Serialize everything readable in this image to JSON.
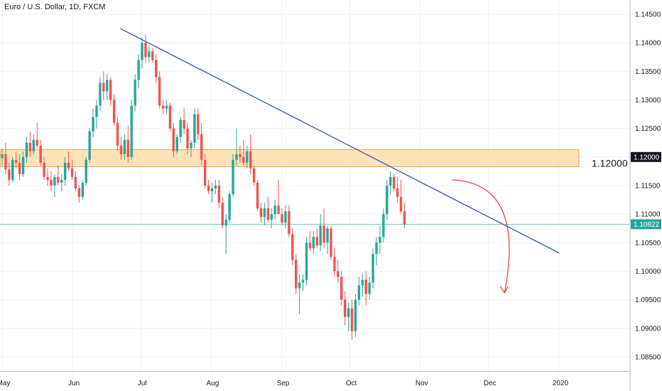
{
  "header": {
    "title": "Euro / U.S. Dollar, 1D, FXCM"
  },
  "colors": {
    "up": "#26a69a",
    "down": "#ef5350",
    "trendline": "#2f5aa8",
    "zone_fill": "#fbd9a6",
    "zone_border": "#f4a347",
    "arrow": "#e53935",
    "price_line": "#26a69a",
    "grid": "#eef0f3",
    "axis": "#b2b5be"
  },
  "chart_data": {
    "type": "candlestick",
    "title": "Euro / U.S. Dollar, 1D, FXCM",
    "ylim": [
      1.0825,
      1.1475
    ],
    "y_ticks": [
      "1.14500",
      "1.14000",
      "1.13500",
      "1.13000",
      "1.12500",
      "1.12000",
      "1.11500",
      "1.11000",
      "1.10500",
      "1.10000",
      "1.09500",
      "1.09000",
      "1.08500"
    ],
    "x_ticks": [
      {
        "label": "May",
        "day": 0
      },
      {
        "label": "Jun",
        "day": 31
      },
      {
        "label": "Jul",
        "day": 61
      },
      {
        "label": "Aug",
        "day": 92
      },
      {
        "label": "Sep",
        "day": 123
      },
      {
        "label": "Oct",
        "day": 153
      },
      {
        "label": "Nov",
        "day": 184
      },
      {
        "label": "Dec",
        "day": 214
      },
      {
        "label": "2020",
        "day": 245
      }
    ],
    "candles": [
      [
        1.1198,
        1.1215,
        1.1185,
        1.1205
      ],
      [
        1.1205,
        1.1225,
        1.117,
        1.1178
      ],
      [
        1.1178,
        1.119,
        1.115,
        1.116
      ],
      [
        1.116,
        1.12,
        1.1155,
        1.1195
      ],
      [
        1.1195,
        1.121,
        1.118,
        1.119
      ],
      [
        1.119,
        1.1205,
        1.116,
        1.117
      ],
      [
        1.117,
        1.121,
        1.1165,
        1.12
      ],
      [
        1.12,
        1.1235,
        1.119,
        1.1225
      ],
      [
        1.1225,
        1.1245,
        1.12,
        1.121
      ],
      [
        1.121,
        1.124,
        1.1205,
        1.123
      ],
      [
        1.123,
        1.126,
        1.1215,
        1.122
      ],
      [
        1.122,
        1.123,
        1.1185,
        1.119
      ],
      [
        1.119,
        1.12,
        1.116,
        1.1165
      ],
      [
        1.1165,
        1.118,
        1.115,
        1.116
      ],
      [
        1.116,
        1.1175,
        1.114,
        1.115
      ],
      [
        1.115,
        1.117,
        1.113,
        1.1165
      ],
      [
        1.1165,
        1.1185,
        1.115,
        1.1155
      ],
      [
        1.1155,
        1.117,
        1.114,
        1.116
      ],
      [
        1.116,
        1.12,
        1.115,
        1.119
      ],
      [
        1.119,
        1.121,
        1.1175,
        1.118
      ],
      [
        1.118,
        1.1195,
        1.116,
        1.1165
      ],
      [
        1.1165,
        1.1175,
        1.114,
        1.1145
      ],
      [
        1.1145,
        1.115,
        1.112,
        1.113
      ],
      [
        1.113,
        1.116,
        1.1125,
        1.1155
      ],
      [
        1.1155,
        1.12,
        1.115,
        1.1195
      ],
      [
        1.1195,
        1.125,
        1.119,
        1.1245
      ],
      [
        1.1245,
        1.1285,
        1.1235,
        1.127
      ],
      [
        1.127,
        1.13,
        1.125,
        1.129
      ],
      [
        1.129,
        1.134,
        1.128,
        1.133
      ],
      [
        1.133,
        1.135,
        1.13,
        1.1315
      ],
      [
        1.1315,
        1.1345,
        1.13,
        1.1335
      ],
      [
        1.1335,
        1.134,
        1.129,
        1.13
      ],
      [
        1.13,
        1.131,
        1.1255,
        1.126
      ],
      [
        1.126,
        1.127,
        1.121,
        1.122
      ],
      [
        1.122,
        1.1235,
        1.1195,
        1.1205
      ],
      [
        1.1205,
        1.124,
        1.1195,
        1.123
      ],
      [
        1.123,
        1.1255,
        1.119,
        1.12
      ],
      [
        1.12,
        1.13,
        1.1195,
        1.129
      ],
      [
        1.129,
        1.1345,
        1.128,
        1.1335
      ],
      [
        1.1335,
        1.138,
        1.132,
        1.137
      ],
      [
        1.137,
        1.141,
        1.1355,
        1.14
      ],
      [
        1.14,
        1.1415,
        1.1365,
        1.1375
      ],
      [
        1.1375,
        1.1395,
        1.1365,
        1.1385
      ],
      [
        1.1385,
        1.139,
        1.1365,
        1.137
      ],
      [
        1.137,
        1.138,
        1.133,
        1.134
      ],
      [
        1.134,
        1.135,
        1.1285,
        1.129
      ],
      [
        1.129,
        1.13,
        1.1275,
        1.1285
      ],
      [
        1.1285,
        1.13,
        1.1275,
        1.129
      ],
      [
        1.129,
        1.1295,
        1.1245,
        1.125
      ],
      [
        1.125,
        1.126,
        1.12,
        1.121
      ],
      [
        1.121,
        1.124,
        1.1205,
        1.1235
      ],
      [
        1.1235,
        1.127,
        1.1225,
        1.1265
      ],
      [
        1.1265,
        1.1285,
        1.124,
        1.125
      ],
      [
        1.125,
        1.126,
        1.1205,
        1.1215
      ],
      [
        1.1215,
        1.123,
        1.12,
        1.1225
      ],
      [
        1.1225,
        1.1285,
        1.1215,
        1.1275
      ],
      [
        1.1275,
        1.1285,
        1.123,
        1.124
      ],
      [
        1.124,
        1.126,
        1.1185,
        1.1195
      ],
      [
        1.1195,
        1.1205,
        1.1145,
        1.115
      ],
      [
        1.115,
        1.116,
        1.1135,
        1.114
      ],
      [
        1.114,
        1.1155,
        1.112,
        1.1145
      ],
      [
        1.1145,
        1.116,
        1.1135,
        1.115
      ],
      [
        1.115,
        1.116,
        1.111,
        1.112
      ],
      [
        1.112,
        1.113,
        1.1075,
        1.108
      ],
      [
        1.108,
        1.11,
        1.103,
        1.109
      ],
      [
        1.109,
        1.114,
        1.1085,
        1.1135
      ],
      [
        1.1135,
        1.1205,
        1.113,
        1.1195
      ],
      [
        1.1195,
        1.125,
        1.1185,
        1.1205
      ],
      [
        1.1205,
        1.122,
        1.119,
        1.12
      ],
      [
        1.12,
        1.123,
        1.1185,
        1.119
      ],
      [
        1.119,
        1.122,
        1.118,
        1.121
      ],
      [
        1.121,
        1.124,
        1.117,
        1.118
      ],
      [
        1.118,
        1.1185,
        1.115,
        1.1155
      ],
      [
        1.1155,
        1.116,
        1.1105,
        1.111
      ],
      [
        1.111,
        1.112,
        1.1085,
        1.1095
      ],
      [
        1.1095,
        1.112,
        1.108,
        1.111
      ],
      [
        1.111,
        1.113,
        1.1085,
        1.109
      ],
      [
        1.109,
        1.111,
        1.1075,
        1.11
      ],
      [
        1.11,
        1.1125,
        1.109,
        1.1115
      ],
      [
        1.1115,
        1.116,
        1.1105,
        1.11
      ],
      [
        1.11,
        1.111,
        1.108,
        1.1085
      ],
      [
        1.1085,
        1.1115,
        1.1075,
        1.1105
      ],
      [
        1.1105,
        1.1115,
        1.106,
        1.1065
      ],
      [
        1.1065,
        1.1075,
        1.101,
        1.102
      ],
      [
        1.102,
        1.103,
        1.096,
        1.097
      ],
      [
        1.097,
        1.0995,
        1.0925,
        1.098
      ],
      [
        1.098,
        1.0995,
        1.0965,
        1.0985
      ],
      [
        1.0985,
        1.106,
        1.0975,
        1.105
      ],
      [
        1.105,
        1.107,
        1.1035,
        1.104
      ],
      [
        1.104,
        1.107,
        1.103,
        1.106
      ],
      [
        1.106,
        1.1075,
        1.104,
        1.1045
      ],
      [
        1.1045,
        1.11,
        1.1035,
        1.108
      ],
      [
        1.108,
        1.111,
        1.104,
        1.105
      ],
      [
        1.105,
        1.108,
        1.103,
        1.1075
      ],
      [
        1.1075,
        1.108,
        1.102,
        1.1025
      ],
      [
        1.1025,
        1.104,
        1.099,
        1.1
      ],
      [
        1.1,
        1.102,
        1.098,
        1.099
      ],
      [
        1.099,
        1.1,
        1.094,
        1.095
      ],
      [
        1.095,
        1.0965,
        1.0905,
        1.092
      ],
      [
        1.092,
        1.0945,
        1.0895,
        1.0935
      ],
      [
        1.0935,
        1.095,
        1.088,
        1.0895
      ],
      [
        1.0895,
        1.096,
        1.0885,
        1.095
      ],
      [
        1.095,
        1.099,
        1.094,
        1.0975
      ],
      [
        1.0975,
        1.0995,
        1.0955,
        1.0985
      ],
      [
        1.0985,
        1.1,
        1.094,
        1.096
      ],
      [
        1.096,
        1.099,
        1.095,
        1.098
      ],
      [
        1.098,
        1.104,
        1.097,
        1.103
      ],
      [
        1.103,
        1.106,
        1.101,
        1.105
      ],
      [
        1.105,
        1.108,
        1.103,
        1.106
      ],
      [
        1.106,
        1.111,
        1.105,
        1.11
      ],
      [
        1.11,
        1.116,
        1.109,
        1.115
      ],
      [
        1.115,
        1.1175,
        1.1135,
        1.1165
      ],
      [
        1.1165,
        1.117,
        1.114,
        1.1145
      ],
      [
        1.1145,
        1.1165,
        1.112,
        1.113
      ],
      [
        1.113,
        1.116,
        1.11,
        1.1105
      ],
      [
        1.1105,
        1.112,
        1.1075,
        1.1082
      ]
    ],
    "resistance_zone": {
      "low": 1.1183,
      "high": 1.1213,
      "label": "1.12000"
    },
    "trendline": {
      "start": {
        "day": 52,
        "price": 1.1425
      },
      "end": {
        "day": 245,
        "price": 1.1032
      }
    },
    "current_price": 1.10822,
    "price_tags": [
      {
        "value": 1.12,
        "label": "1.12000",
        "color": "#131722"
      },
      {
        "value": 1.10822,
        "label": "1.10822",
        "color": "#26a69a"
      }
    ],
    "arrow": {
      "start": {
        "day": 198,
        "price": 1.116
      },
      "end": {
        "day": 221,
        "price": 1.0962
      }
    }
  }
}
